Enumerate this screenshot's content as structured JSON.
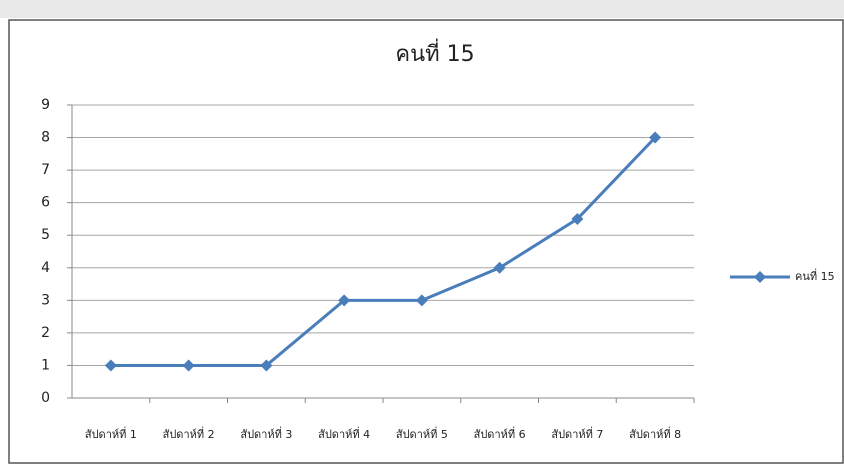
{
  "chart_data": {
    "type": "line",
    "title": "คนที่ 15",
    "categories": [
      "สัปดาห์ที่ 1",
      "สัปดาห์ที่ 2",
      "สัปดาห์ที่ 3",
      "สัปดาห์ที่ 4",
      "สัปดาห์ที่ 5",
      "สัปดาห์ที่ 6",
      "สัปดาห์ที่ 7",
      "สัปดาห์ที่ 8"
    ],
    "series": [
      {
        "name": "คนที่ 15",
        "color": "#4a7ebb",
        "values": [
          1,
          1,
          1,
          3,
          3,
          4,
          5.5,
          8
        ]
      }
    ],
    "ylim": [
      0,
      9
    ],
    "yticks": [
      0,
      1,
      2,
      3,
      4,
      5,
      6,
      7,
      8,
      9
    ],
    "grid": true,
    "legend": "right"
  }
}
